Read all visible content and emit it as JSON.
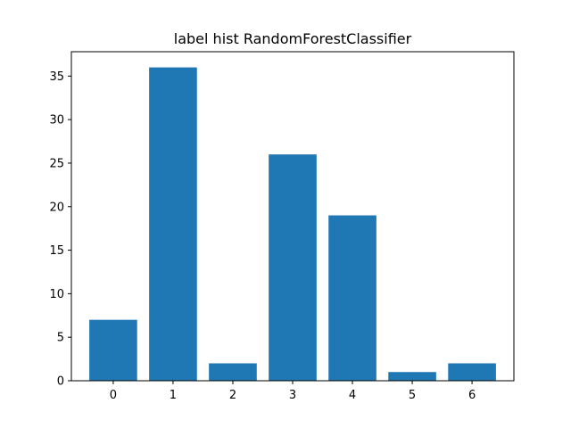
{
  "chart_data": {
    "type": "bar",
    "title": "label hist RandomForestClassifier",
    "xlabel": "",
    "ylabel": "",
    "categories": [
      "0",
      "1",
      "2",
      "3",
      "4",
      "5",
      "6"
    ],
    "values": [
      7,
      36,
      2,
      26,
      19,
      1,
      2
    ],
    "ylim": [
      0,
      37.8
    ],
    "yticks": [
      0,
      5,
      10,
      15,
      20,
      25,
      30,
      35
    ],
    "bar_color": "#1f77b4",
    "grid": false,
    "legend": false
  }
}
